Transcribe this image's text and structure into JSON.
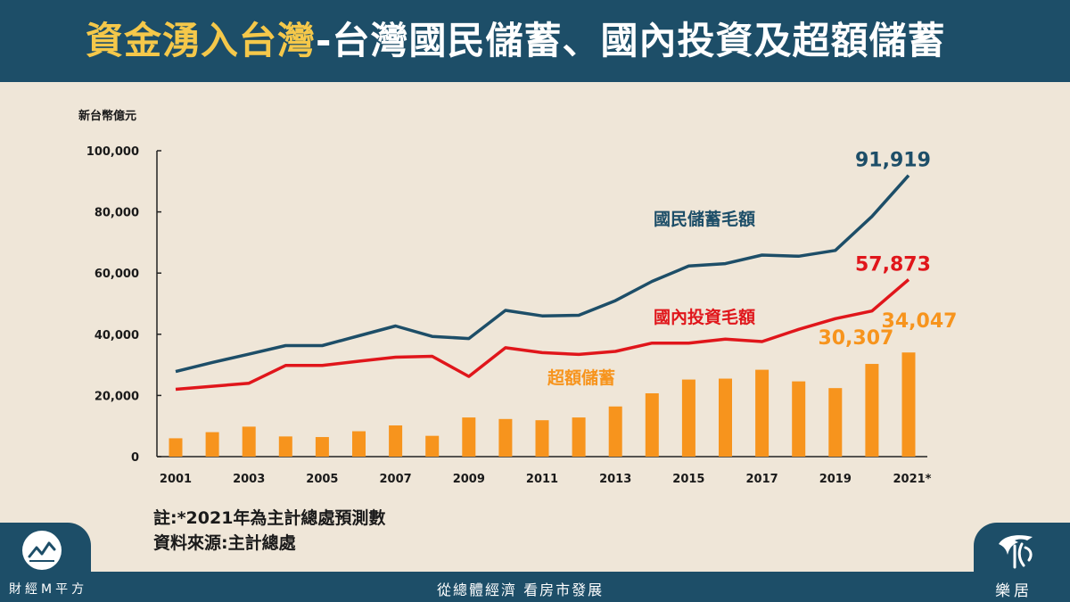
{
  "header": {
    "title_highlight": "資金湧入台灣",
    "title_rest": "-台灣國民儲蓄、國內投資及超額儲蓄"
  },
  "notes": {
    "line1": "註:*2021年為主計總處預測數",
    "line2": "資料來源:主計總處"
  },
  "footer": {
    "brand_left": "財經M平方",
    "slogan": "從總體經濟  看房市發展",
    "brand_right": "樂居"
  },
  "colors": {
    "header_bg": "#1d4e68",
    "savings_line": "#1d4e68",
    "investment_line": "#e0161b",
    "excess_bars": "#f7941d",
    "title_highlight": "#f5c84a",
    "background": "#efe6d8"
  },
  "icons": {
    "left_logo": "chart-trend-icon",
    "right_logo": "bird-logo-icon"
  },
  "chart_data": {
    "type": "bar",
    "ylabel": "新台幣億元",
    "ylim": [
      0,
      100000
    ],
    "yticks": [
      "0",
      "20,000",
      "40,000",
      "60,000",
      "80,000",
      "100,000"
    ],
    "x": [
      "2001",
      "2002",
      "2003",
      "2004",
      "2005",
      "2006",
      "2007",
      "2008",
      "2009",
      "2010",
      "2011",
      "2012",
      "2013",
      "2014",
      "2015",
      "2016",
      "2017",
      "2018",
      "2019",
      "2020",
      "2021*"
    ],
    "xtick_labels": [
      "2001",
      "2003",
      "2005",
      "2007",
      "2009",
      "2011",
      "2013",
      "2015",
      "2017",
      "2019",
      "2021*"
    ],
    "series": [
      {
        "name": "國民儲蓄毛額",
        "kind": "line",
        "color": "#1d4e68",
        "values": [
          27800,
          30800,
          33500,
          36300,
          36300,
          39500,
          42700,
          39300,
          38600,
          47800,
          46000,
          46200,
          51000,
          57300,
          62300,
          63100,
          65900,
          65500,
          67400,
          78500,
          91919
        ],
        "end_label": "91,919"
      },
      {
        "name": "國內投資毛額",
        "kind": "line",
        "color": "#e0161b",
        "values": [
          22000,
          23000,
          24000,
          29800,
          29800,
          31200,
          32500,
          32800,
          26200,
          35600,
          34000,
          33400,
          34400,
          37100,
          37100,
          38400,
          37600,
          41600,
          45100,
          47600,
          57873
        ],
        "end_label": "57,873"
      },
      {
        "name": "超額儲蓄",
        "kind": "bar",
        "color": "#f7941d",
        "values": [
          6000,
          8000,
          9800,
          6600,
          6400,
          8300,
          10200,
          6800,
          12800,
          12300,
          11900,
          12800,
          16400,
          20700,
          25200,
          25500,
          28400,
          24600,
          22400,
          30307,
          34047
        ],
        "labels": [
          {
            "index": 19,
            "text": "30,307"
          },
          {
            "index": 20,
            "text": "34,047"
          }
        ]
      }
    ]
  }
}
